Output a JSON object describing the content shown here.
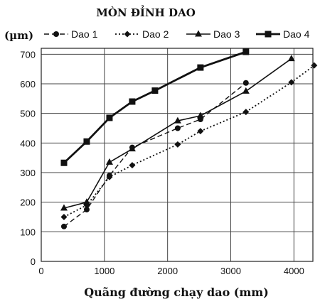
{
  "chart_data": {
    "type": "line",
    "title": "MÒN ĐỈNH DAO",
    "ylabel": "(µm)",
    "xlabel": "Quãng đường chạy dao (mm)",
    "xlim": [
      0,
      4300
    ],
    "ylim": [
      0,
      720
    ],
    "x_ticks": [
      0,
      1000,
      2000,
      3000,
      4000
    ],
    "y_ticks": [
      0,
      100,
      200,
      300,
      400,
      500,
      600,
      700
    ],
    "grid": true,
    "legend_position": "top",
    "series": [
      {
        "name": "Dao 1",
        "marker": "circle",
        "line_style": "dashed",
        "points": [
          [
            360,
            118
          ],
          [
            720,
            175
          ],
          [
            1080,
            290
          ],
          [
            1440,
            385
          ],
          [
            2160,
            450
          ],
          [
            2520,
            480
          ],
          [
            3240,
            603
          ]
        ]
      },
      {
        "name": "Dao 2",
        "marker": "diamond",
        "line_style": "dotted",
        "points": [
          [
            360,
            150
          ],
          [
            720,
            190
          ],
          [
            1080,
            285
          ],
          [
            1440,
            325
          ],
          [
            2160,
            395
          ],
          [
            2520,
            440
          ],
          [
            3240,
            505
          ],
          [
            3960,
            605
          ],
          [
            4320,
            662
          ]
        ]
      },
      {
        "name": "Dao 3",
        "marker": "triangle",
        "line_style": "solid",
        "points": [
          [
            360,
            180
          ],
          [
            720,
            200
          ],
          [
            1080,
            335
          ],
          [
            1440,
            380
          ],
          [
            2160,
            475
          ],
          [
            2520,
            492
          ],
          [
            3240,
            575
          ],
          [
            3960,
            685
          ]
        ]
      },
      {
        "name": "Dao 4",
        "marker": "square",
        "line_style": "solid-bold",
        "points": [
          [
            360,
            333
          ],
          [
            720,
            405
          ],
          [
            1080,
            485
          ],
          [
            1440,
            540
          ],
          [
            1800,
            577
          ],
          [
            2520,
            655
          ],
          [
            3240,
            708
          ]
        ]
      }
    ]
  }
}
